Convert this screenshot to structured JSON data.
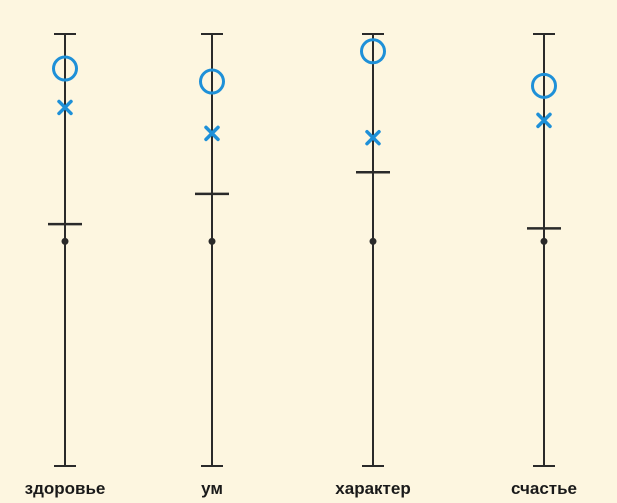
{
  "chart_data": {
    "type": "scatter",
    "description_note": "",
    "scales": [
      {
        "label": "здоровье",
        "bar": 0.56,
        "cross": 0.83,
        "circle": 0.92
      },
      {
        "label": "ум",
        "bar": 0.63,
        "cross": 0.77,
        "circle": 0.89
      },
      {
        "label": "характер",
        "bar": 0.68,
        "cross": 0.76,
        "circle": 0.96
      },
      {
        "label": "счастье",
        "bar": 0.55,
        "cross": 0.8,
        "circle": 0.88
      }
    ],
    "dot": 0.52,
    "ylim": [
      0,
      1
    ],
    "colors": {
      "background": "#fdf6e0",
      "line": "#2a2a2a",
      "marker": "#1e90d8"
    }
  }
}
